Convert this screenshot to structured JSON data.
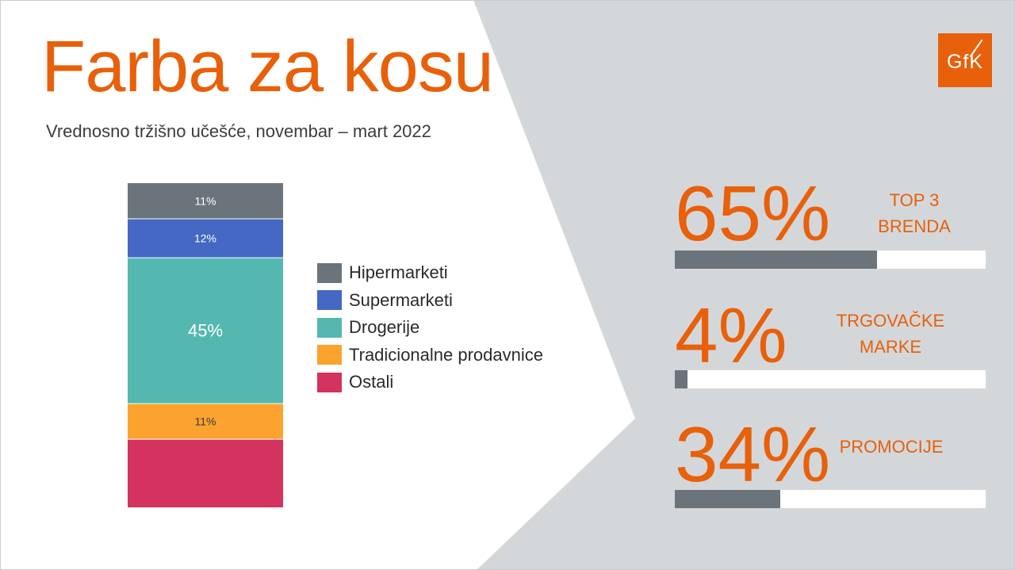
{
  "title": "Farba za kosu",
  "subtitle": "Vrednosno tržišno učešće, novembar – mart 2022",
  "logo": {
    "text": "GfK",
    "color": "#e8600a"
  },
  "chart_data": {
    "type": "bar",
    "stacked": true,
    "categories": [
      ""
    ],
    "ylim": [
      0,
      100
    ],
    "series": [
      {
        "name": "Hipermarketi",
        "value": 11,
        "label": "11%",
        "color": "#6b747a"
      },
      {
        "name": "Supermarketi",
        "value": 12,
        "label": "12%",
        "color": "#4468c3"
      },
      {
        "name": "Drogerije",
        "value": 45,
        "label": "45%",
        "color": "#54b8b0"
      },
      {
        "name": "Tradicionalne prodavnice",
        "value": 11,
        "label": "11%",
        "color": "#fba32e"
      },
      {
        "name": "Ostali",
        "value": 21,
        "label": "",
        "color": "#d4335f"
      }
    ],
    "legend_position": "right"
  },
  "kpis": [
    {
      "value": "65%",
      "label_line1": "TOP 3",
      "label_line2": "BRENDA",
      "fill_fraction": 0.65
    },
    {
      "value": "4%",
      "label_line1": "TRGOVAČKE",
      "label_line2": "MARKE",
      "fill_fraction": 0.04
    },
    {
      "value": "34%",
      "label_line1": "PROMOCIJE",
      "label_line2": "",
      "fill_fraction": 0.34
    }
  ],
  "colors": {
    "accent": "#e8600a",
    "panel": "#d4d7da",
    "bar_fill": "#6b747a"
  }
}
